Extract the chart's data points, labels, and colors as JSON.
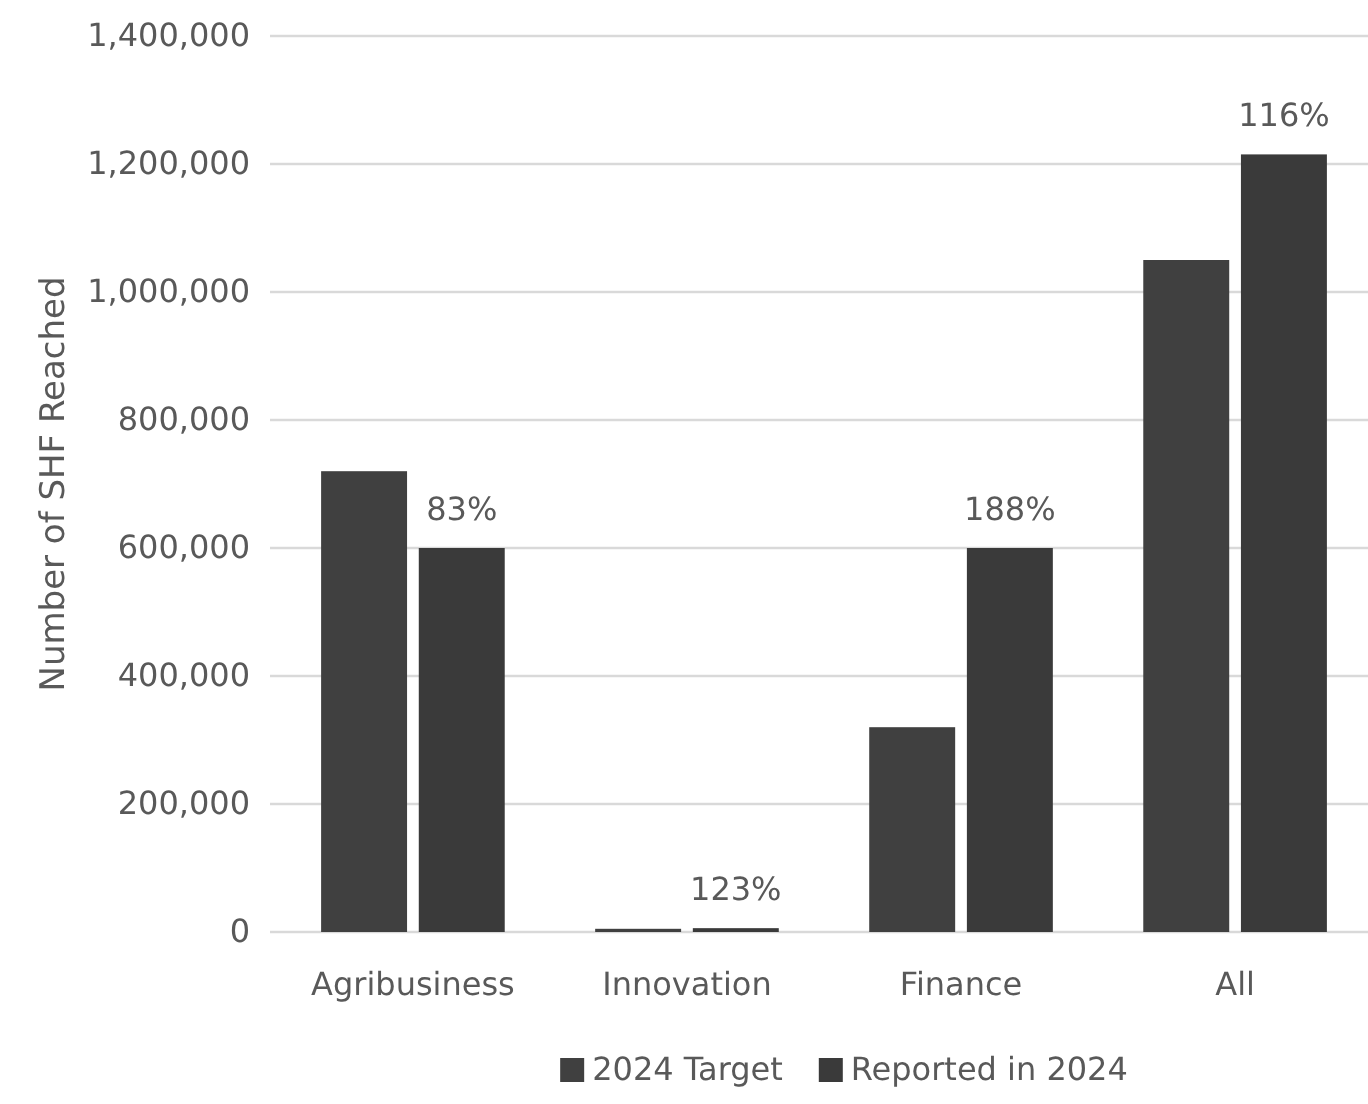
{
  "chart_data": {
    "type": "bar",
    "ylabel": "Number of SHF Reached",
    "categories": [
      "Agribusiness",
      "Innovation",
      "Finance",
      "All"
    ],
    "series": [
      {
        "name": "2024 Target",
        "color": "#404040",
        "values": [
          720000,
          5000,
          320000,
          1050000
        ]
      },
      {
        "name": "Reported in 2024",
        "color": "#3a3a3a",
        "values": [
          600000,
          6000,
          600000,
          1215000
        ]
      }
    ],
    "ylim": [
      0,
      1400000
    ],
    "yticks": [
      {
        "value": 0,
        "label": "0"
      },
      {
        "value": 200000,
        "label": "200,000"
      },
      {
        "value": 400000,
        "label": "400,000"
      },
      {
        "value": 600000,
        "label": "600,000"
      },
      {
        "value": 800000,
        "label": "800,000"
      },
      {
        "value": 1000000,
        "label": "1,000,000"
      },
      {
        "value": 1200000,
        "label": "1,200,000"
      },
      {
        "value": 1400000,
        "label": "1,400,000"
      }
    ],
    "grid": "y",
    "legend": "bottom",
    "annotations": [
      {
        "text": "83%",
        "x": "Agribusiness",
        "y": 600000
      },
      {
        "text": "123%",
        "x": "Innovation",
        "y": 6000
      },
      {
        "text": "188%",
        "x": "Finance",
        "y": 600000
      },
      {
        "text": "116%",
        "x": "All",
        "y": 1215000
      }
    ]
  }
}
